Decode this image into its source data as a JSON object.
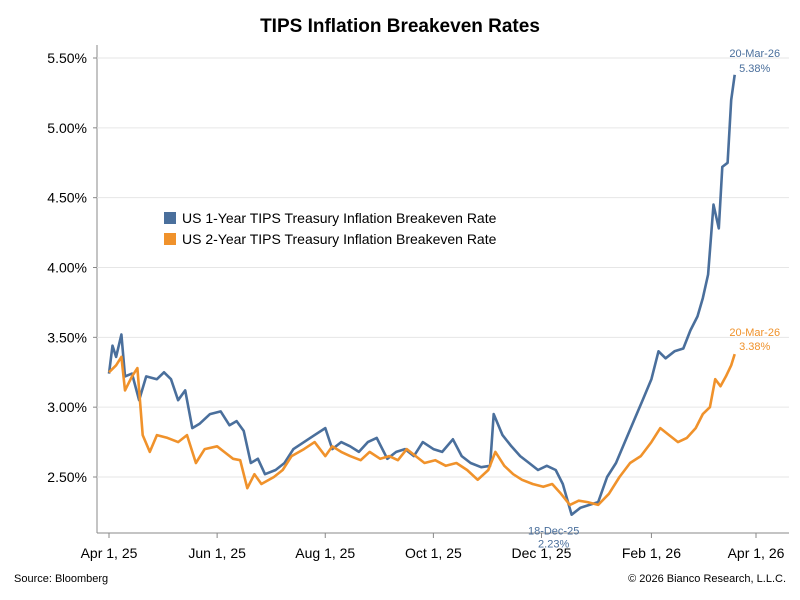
{
  "chart_data": {
    "type": "line",
    "title": "TIPS Inflation Breakeven Rates",
    "source": "Source: Bloomberg",
    "copyright": "© 2026 Bianco Research, L.L.C.",
    "xlabel": "",
    "ylabel": "",
    "ylim": [
      2.0,
      5.5
    ],
    "y_ticks": [
      2.5,
      3.0,
      3.5,
      4.0,
      4.5,
      5.0,
      5.5
    ],
    "y_tick_labels": [
      "2.50%",
      "3.00%",
      "3.50%",
      "4.00%",
      "4.50%",
      "5.00%",
      "5.50%"
    ],
    "x_ticks": [
      "2025-04-01",
      "2025-06-01",
      "2025-08-01",
      "2025-10-01",
      "2025-12-01",
      "2026-02-01",
      "2026-04-01"
    ],
    "x_tick_labels": [
      "Apr 1, 25",
      "Jun 1, 25",
      "Aug 1, 25",
      "Oct 1, 25",
      "Dec 1, 25",
      "Feb 1, 26",
      "Apr 1, 26"
    ],
    "grid": true,
    "legend_position": "upper-left",
    "series": [
      {
        "name": "US 1-Year TIPS Treasury Inflation Breakeven Rate",
        "color": "#4a6f9c",
        "points": [
          [
            "2025-04-01",
            3.24
          ],
          [
            "2025-04-03",
            3.44
          ],
          [
            "2025-04-05",
            3.36
          ],
          [
            "2025-04-08",
            3.52
          ],
          [
            "2025-04-10",
            3.22
          ],
          [
            "2025-04-14",
            3.24
          ],
          [
            "2025-04-18",
            3.05
          ],
          [
            "2025-04-22",
            3.22
          ],
          [
            "2025-04-28",
            3.2
          ],
          [
            "2025-05-02",
            3.25
          ],
          [
            "2025-05-06",
            3.2
          ],
          [
            "2025-05-10",
            3.05
          ],
          [
            "2025-05-14",
            3.12
          ],
          [
            "2025-05-18",
            2.85
          ],
          [
            "2025-05-22",
            2.88
          ],
          [
            "2025-05-28",
            2.95
          ],
          [
            "2025-06-03",
            2.97
          ],
          [
            "2025-06-08",
            2.87
          ],
          [
            "2025-06-12",
            2.9
          ],
          [
            "2025-06-16",
            2.83
          ],
          [
            "2025-06-20",
            2.6
          ],
          [
            "2025-06-24",
            2.63
          ],
          [
            "2025-06-28",
            2.52
          ],
          [
            "2025-07-04",
            2.55
          ],
          [
            "2025-07-09",
            2.6
          ],
          [
            "2025-07-14",
            2.7
          ],
          [
            "2025-07-20",
            2.75
          ],
          [
            "2025-07-26",
            2.8
          ],
          [
            "2025-08-01",
            2.85
          ],
          [
            "2025-08-05",
            2.7
          ],
          [
            "2025-08-10",
            2.75
          ],
          [
            "2025-08-15",
            2.72
          ],
          [
            "2025-08-20",
            2.68
          ],
          [
            "2025-08-25",
            2.75
          ],
          [
            "2025-08-30",
            2.78
          ],
          [
            "2025-09-05",
            2.63
          ],
          [
            "2025-09-10",
            2.68
          ],
          [
            "2025-09-15",
            2.7
          ],
          [
            "2025-09-20",
            2.65
          ],
          [
            "2025-09-25",
            2.75
          ],
          [
            "2025-10-01",
            2.7
          ],
          [
            "2025-10-06",
            2.68
          ],
          [
            "2025-10-12",
            2.77
          ],
          [
            "2025-10-17",
            2.65
          ],
          [
            "2025-10-22",
            2.6
          ],
          [
            "2025-10-28",
            2.57
          ],
          [
            "2025-11-02",
            2.58
          ],
          [
            "2025-11-04",
            2.95
          ],
          [
            "2025-11-09",
            2.8
          ],
          [
            "2025-11-14",
            2.72
          ],
          [
            "2025-11-19",
            2.65
          ],
          [
            "2025-11-24",
            2.6
          ],
          [
            "2025-11-29",
            2.55
          ],
          [
            "2025-12-04",
            2.58
          ],
          [
            "2025-12-09",
            2.55
          ],
          [
            "2025-12-13",
            2.45
          ],
          [
            "2025-12-18",
            2.23
          ],
          [
            "2025-12-23",
            2.28
          ],
          [
            "2025-12-28",
            2.3
          ],
          [
            "2026-01-02",
            2.32
          ],
          [
            "2026-01-07",
            2.5
          ],
          [
            "2026-01-12",
            2.6
          ],
          [
            "2026-01-17",
            2.75
          ],
          [
            "2026-01-22",
            2.9
          ],
          [
            "2026-01-27",
            3.05
          ],
          [
            "2026-02-01",
            3.2
          ],
          [
            "2026-02-05",
            3.4
          ],
          [
            "2026-02-09",
            3.35
          ],
          [
            "2026-02-14",
            3.4
          ],
          [
            "2026-02-19",
            3.42
          ],
          [
            "2026-02-23",
            3.55
          ],
          [
            "2026-02-27",
            3.65
          ],
          [
            "2026-03-02",
            3.78
          ],
          [
            "2026-03-05",
            3.95
          ],
          [
            "2026-03-08",
            4.45
          ],
          [
            "2026-03-11",
            4.28
          ],
          [
            "2026-03-13",
            4.72
          ],
          [
            "2026-03-16",
            4.75
          ],
          [
            "2026-03-18",
            5.2
          ],
          [
            "2026-03-20",
            5.38
          ]
        ],
        "annotations": [
          {
            "date": "2025-12-18",
            "value": 2.23,
            "label": "18-Dec-25",
            "value_label": "2.23%"
          },
          {
            "date": "2026-03-20",
            "value": 5.38,
            "label": "20-Mar-26",
            "value_label": "5.38%"
          }
        ]
      },
      {
        "name": "US 2-Year TIPS Treasury Inflation Breakeven Rate",
        "color": "#f0922b",
        "points": [
          [
            "2025-04-01",
            3.25
          ],
          [
            "2025-04-05",
            3.3
          ],
          [
            "2025-04-08",
            3.36
          ],
          [
            "2025-04-10",
            3.12
          ],
          [
            "2025-04-14",
            3.22
          ],
          [
            "2025-04-17",
            3.28
          ],
          [
            "2025-04-20",
            2.8
          ],
          [
            "2025-04-24",
            2.68
          ],
          [
            "2025-04-28",
            2.8
          ],
          [
            "2025-05-04",
            2.78
          ],
          [
            "2025-05-10",
            2.75
          ],
          [
            "2025-05-15",
            2.8
          ],
          [
            "2025-05-20",
            2.6
          ],
          [
            "2025-05-25",
            2.7
          ],
          [
            "2025-06-01",
            2.72
          ],
          [
            "2025-06-05",
            2.68
          ],
          [
            "2025-06-10",
            2.63
          ],
          [
            "2025-06-14",
            2.62
          ],
          [
            "2025-06-18",
            2.42
          ],
          [
            "2025-06-22",
            2.52
          ],
          [
            "2025-06-26",
            2.45
          ],
          [
            "2025-07-03",
            2.5
          ],
          [
            "2025-07-08",
            2.55
          ],
          [
            "2025-07-13",
            2.65
          ],
          [
            "2025-07-20",
            2.7
          ],
          [
            "2025-07-26",
            2.75
          ],
          [
            "2025-08-01",
            2.65
          ],
          [
            "2025-08-05",
            2.72
          ],
          [
            "2025-08-10",
            2.68
          ],
          [
            "2025-08-15",
            2.65
          ],
          [
            "2025-08-21",
            2.62
          ],
          [
            "2025-08-26",
            2.68
          ],
          [
            "2025-09-01",
            2.63
          ],
          [
            "2025-09-06",
            2.65
          ],
          [
            "2025-09-11",
            2.62
          ],
          [
            "2025-09-16",
            2.7
          ],
          [
            "2025-09-21",
            2.65
          ],
          [
            "2025-09-26",
            2.6
          ],
          [
            "2025-10-02",
            2.62
          ],
          [
            "2025-10-08",
            2.58
          ],
          [
            "2025-10-14",
            2.6
          ],
          [
            "2025-10-20",
            2.55
          ],
          [
            "2025-10-26",
            2.48
          ],
          [
            "2025-11-01",
            2.55
          ],
          [
            "2025-11-05",
            2.68
          ],
          [
            "2025-11-10",
            2.58
          ],
          [
            "2025-11-15",
            2.52
          ],
          [
            "2025-11-20",
            2.48
          ],
          [
            "2025-11-26",
            2.45
          ],
          [
            "2025-12-02",
            2.43
          ],
          [
            "2025-12-07",
            2.45
          ],
          [
            "2025-12-12",
            2.38
          ],
          [
            "2025-12-17",
            2.3
          ],
          [
            "2025-12-22",
            2.33
          ],
          [
            "2025-12-27",
            2.32
          ],
          [
            "2026-01-02",
            2.3
          ],
          [
            "2026-01-08",
            2.38
          ],
          [
            "2026-01-14",
            2.5
          ],
          [
            "2026-01-20",
            2.6
          ],
          [
            "2026-01-26",
            2.65
          ],
          [
            "2026-02-01",
            2.75
          ],
          [
            "2026-02-06",
            2.85
          ],
          [
            "2026-02-11",
            2.8
          ],
          [
            "2026-02-16",
            2.75
          ],
          [
            "2026-02-21",
            2.78
          ],
          [
            "2026-02-26",
            2.85
          ],
          [
            "2026-03-02",
            2.95
          ],
          [
            "2026-03-06",
            3.0
          ],
          [
            "2026-03-09",
            3.2
          ],
          [
            "2026-03-12",
            3.15
          ],
          [
            "2026-03-15",
            3.22
          ],
          [
            "2026-03-18",
            3.3
          ],
          [
            "2026-03-20",
            3.38
          ]
        ],
        "annotations": [
          {
            "date": "2026-03-20",
            "value": 3.38,
            "label": "20-Mar-26",
            "value_label": "3.38%"
          }
        ]
      }
    ]
  }
}
